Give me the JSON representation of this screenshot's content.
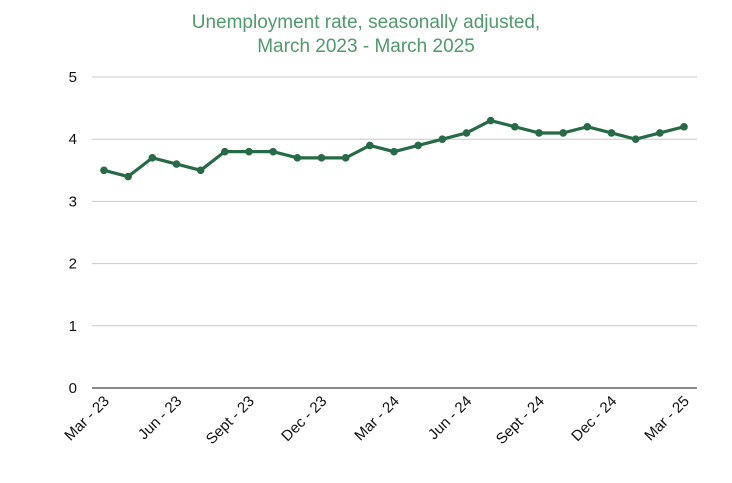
{
  "chart_data": {
    "type": "line",
    "title": [
      "Unemployment rate, seasonally adjusted,",
      "March 2023 - March 2025"
    ],
    "xlabel": "",
    "ylabel": "",
    "ylim": [
      0,
      5
    ],
    "yticks": [
      "0",
      "1",
      "2",
      "3",
      "4",
      "5"
    ],
    "grid": true,
    "line_color": "#276b46",
    "title_color": "#4f9a6a",
    "x_tick_labels": [
      "Mar - 23",
      "Jun - 23",
      "Sept - 23",
      "Dec - 23",
      "Mar - 24",
      "Jun - 24",
      "Sept - 24",
      "Dec - 24",
      "Mar - 25"
    ],
    "x": [
      "Mar 2023",
      "Apr 2023",
      "May 2023",
      "Jun 2023",
      "Jul 2023",
      "Aug 2023",
      "Sep 2023",
      "Oct 2023",
      "Nov 2023",
      "Dec 2023",
      "Jan 2024",
      "Feb 2024",
      "Mar 2024",
      "Apr 2024",
      "May 2024",
      "Jun 2024",
      "Jul 2024",
      "Aug 2024",
      "Sep 2024",
      "Oct 2024",
      "Nov 2024",
      "Dec 2024",
      "Jan 2025",
      "Feb 2025",
      "Mar 2025"
    ],
    "series": [
      {
        "values": [
          3.5,
          3.4,
          3.7,
          3.6,
          3.5,
          3.8,
          3.8,
          3.8,
          3.7,
          3.7,
          3.7,
          3.9,
          3.8,
          3.9,
          4.0,
          4.1,
          4.3,
          4.2,
          4.1,
          4.1,
          4.2,
          4.1,
          4.0,
          4.1,
          4.2
        ]
      }
    ]
  }
}
